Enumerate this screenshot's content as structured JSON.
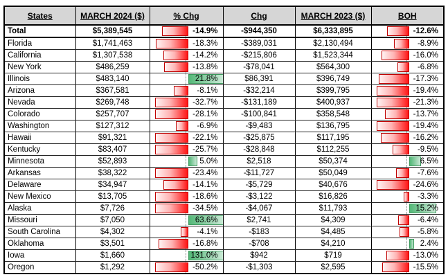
{
  "table": {
    "columns": [
      {
        "key": "state",
        "label": "States"
      },
      {
        "key": "march2024",
        "label": "MARCH 2024 ($)"
      },
      {
        "key": "pct_chg",
        "label": "% Chg"
      },
      {
        "key": "chg",
        "label": "Chg"
      },
      {
        "key": "march2023",
        "label": "MARCH 2023 ($)"
      },
      {
        "key": "boh",
        "label": "BOH"
      }
    ],
    "rows": [
      {
        "state": "Total",
        "march2024": "$5,389,545",
        "pct_chg": "-14.9%",
        "chg": "-$944,350",
        "march2023": "$6,333,895",
        "boh": "-12.6%",
        "emphasis": true
      },
      {
        "state": "Florida",
        "march2024": "$1,741,463",
        "pct_chg": "-18.3%",
        "chg": "-$389,031",
        "march2023": "$2,130,494",
        "boh": "-8.9%",
        "emphasis": false
      },
      {
        "state": "California",
        "march2024": "$1,307,538",
        "pct_chg": "-14.2%",
        "chg": "-$215,806",
        "march2023": "$1,523,344",
        "boh": "-16.0%",
        "emphasis": false
      },
      {
        "state": "New York",
        "march2024": "$486,259",
        "pct_chg": "-13.8%",
        "chg": "-$78,041",
        "march2023": "$564,300",
        "boh": "-6.8%",
        "emphasis": false
      },
      {
        "state": "Illinois",
        "march2024": "$483,140",
        "pct_chg": "21.8%",
        "chg": "$86,391",
        "march2023": "$396,749",
        "boh": "-17.3%",
        "emphasis": false
      },
      {
        "state": "Arizona",
        "march2024": "$367,581",
        "pct_chg": "-8.1%",
        "chg": "-$32,214",
        "march2023": "$399,795",
        "boh": "-19.4%",
        "emphasis": false
      },
      {
        "state": "Nevada",
        "march2024": "$269,748",
        "pct_chg": "-32.7%",
        "chg": "-$131,189",
        "march2023": "$400,937",
        "boh": "-21.3%",
        "emphasis": false
      },
      {
        "state": "Colorado",
        "march2024": "$257,707",
        "pct_chg": "-28.1%",
        "chg": "-$100,841",
        "march2023": "$358,548",
        "boh": "-13.7%",
        "emphasis": false
      },
      {
        "state": "Washington",
        "march2024": "$127,312",
        "pct_chg": "-6.9%",
        "chg": "-$9,483",
        "march2023": "$136,795",
        "boh": "-19.4%",
        "emphasis": false
      },
      {
        "state": "Hawaii",
        "march2024": "$91,321",
        "pct_chg": "-22.1%",
        "chg": "-$25,875",
        "march2023": "$117,195",
        "boh": "-16.2%",
        "emphasis": false
      },
      {
        "state": "Kentucky",
        "march2024": "$83,407",
        "pct_chg": "-25.7%",
        "chg": "-$28,848",
        "march2023": "$112,255",
        "boh": "-9.5%",
        "emphasis": false
      },
      {
        "state": "Minnesota",
        "march2024": "$52,893",
        "pct_chg": "5.0%",
        "chg": "$2,518",
        "march2023": "$50,374",
        "boh": "6.5%",
        "emphasis": false
      },
      {
        "state": "Arkansas",
        "march2024": "$38,322",
        "pct_chg": "-23.4%",
        "chg": "-$11,727",
        "march2023": "$50,049",
        "boh": "-7.6%",
        "emphasis": false
      },
      {
        "state": "Delaware",
        "march2024": "$34,947",
        "pct_chg": "-14.1%",
        "chg": "-$5,729",
        "march2023": "$40,676",
        "boh": "-24.6%",
        "emphasis": false
      },
      {
        "state": "New Mexico",
        "march2024": "$13,705",
        "pct_chg": "-18.6%",
        "chg": "-$3,122",
        "march2023": "$16,826",
        "boh": "-3.3%",
        "emphasis": false
      },
      {
        "state": "Alaska",
        "march2024": "$7,726",
        "pct_chg": "-34.5%",
        "chg": "-$4,067",
        "march2023": "$11,793",
        "boh": "15.2%",
        "emphasis": false
      },
      {
        "state": "Missouri",
        "march2024": "$7,050",
        "pct_chg": "63.6%",
        "chg": "$2,741",
        "march2023": "$4,309",
        "boh": "-6.4%",
        "emphasis": false
      },
      {
        "state": "South Carolina",
        "march2024": "$4,302",
        "pct_chg": "-4.1%",
        "chg": "-$183",
        "march2023": "$4,485",
        "boh": "-5.8%",
        "emphasis": false
      },
      {
        "state": "Oklahoma",
        "march2024": "$3,501",
        "pct_chg": "-16.8%",
        "chg": "-$708",
        "march2023": "$4,210",
        "boh": "2.4%",
        "emphasis": false
      },
      {
        "state": "Iowa",
        "march2024": "$1,660",
        "pct_chg": "131.0%",
        "chg": "$942",
        "march2023": "$719",
        "boh": "-13.0%",
        "emphasis": false
      },
      {
        "state": "Oregon",
        "march2024": "$1,292",
        "pct_chg": "-50.2%",
        "chg": "-$1,303",
        "march2023": "$2,595",
        "boh": "-15.5%",
        "emphasis": false
      }
    ],
    "bar_colors": {
      "negative_fill": "#ff1414",
      "negative_border": "#c00000",
      "positive_fill": "#53b877",
      "positive_border": "#3d9a5e"
    },
    "header_bg": "#d6d6d6"
  }
}
